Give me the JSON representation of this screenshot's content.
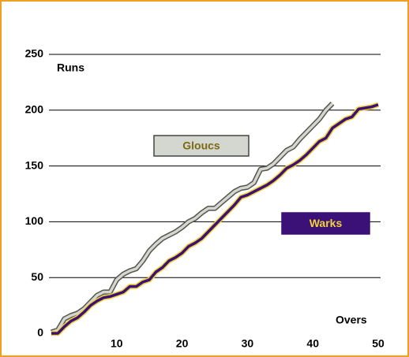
{
  "chart_data": {
    "type": "line",
    "ylabel": "Runs",
    "xlabel": "Overs",
    "x": [
      0,
      1,
      2,
      3,
      4,
      5,
      6,
      7,
      8,
      9,
      10,
      11,
      12,
      13,
      14,
      15,
      16,
      17,
      18,
      19,
      20,
      21,
      22,
      23,
      24,
      25,
      26,
      27,
      28,
      29,
      30,
      31,
      32,
      33,
      34,
      35,
      36,
      37,
      38,
      39,
      40,
      41,
      42,
      43,
      44,
      45,
      46,
      47,
      48,
      49,
      50
    ],
    "series": [
      {
        "name": "Gloucs",
        "color": "#d4d6d0",
        "values": [
          1,
          3,
          13,
          16,
          18,
          22,
          28,
          34,
          37,
          37,
          48,
          53,
          56,
          58,
          65,
          74,
          80,
          85,
          88,
          91,
          95,
          100,
          103,
          108,
          112,
          112,
          117,
          122,
          127,
          130,
          131,
          135,
          147,
          148,
          152,
          158,
          164,
          167,
          174,
          180,
          186,
          192,
          200,
          206,
          null,
          null,
          null,
          null,
          null,
          null,
          null
        ]
      },
      {
        "name": "Warks",
        "color": "#3b1178",
        "values": [
          0,
          0,
          6,
          11,
          14,
          19,
          25,
          29,
          32,
          33,
          35,
          37,
          42,
          42,
          46,
          48,
          55,
          59,
          65,
          68,
          72,
          78,
          81,
          85,
          91,
          97,
          103,
          109,
          115,
          122,
          124,
          127,
          130,
          133,
          137,
          142,
          148,
          151,
          155,
          160,
          166,
          172,
          175,
          184,
          188,
          192,
          194,
          201,
          202,
          203,
          205
        ]
      }
    ],
    "xlim": [
      0,
      50
    ],
    "xticks": [
      10,
      20,
      30,
      40,
      50
    ],
    "ylim": [
      0,
      250
    ],
    "yticks": [
      0,
      50,
      100,
      150,
      200,
      250
    ],
    "grid": true
  }
}
